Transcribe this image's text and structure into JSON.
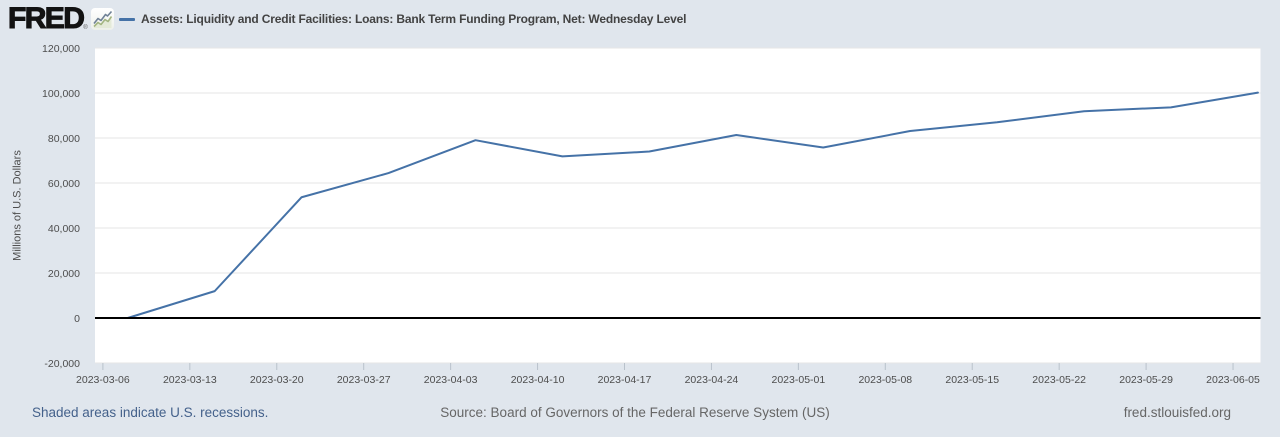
{
  "header": {
    "logo_text": "FRED",
    "logo_registered": "®",
    "logo_icon": "line-chart-icon",
    "series_label": "Assets: Liquidity and Credit Facilities: Loans: Bank Term Funding Program, Net: Wednesday Level"
  },
  "chart_data": {
    "type": "line",
    "title": "Assets: Liquidity and Credit Facilities: Loans: Bank Term Funding Program, Net: Wednesday Level",
    "ylabel": "Millions of U.S. Dollars",
    "xlabel": "",
    "ylim": [
      -20000,
      120000
    ],
    "ytick_step": 20000,
    "ytick_labels": [
      "-20,000",
      "0",
      "20,000",
      "40,000",
      "60,000",
      "80,000",
      "100,000",
      "120,000"
    ],
    "grid": true,
    "zero_line": true,
    "legend_position": "top",
    "line_color": "#4572a7",
    "x": [
      "2023-03-08",
      "2023-03-15",
      "2023-03-22",
      "2023-03-29",
      "2023-04-05",
      "2023-04-12",
      "2023-04-19",
      "2023-04-26",
      "2023-05-03",
      "2023-05-10",
      "2023-05-17",
      "2023-05-24",
      "2023-05-31",
      "2023-06-07"
    ],
    "values": [
      0,
      11943,
      53669,
      64403,
      79021,
      71837,
      73982,
      81327,
      75778,
      83101,
      87006,
      91907,
      93615,
      100161
    ],
    "x_ticks": [
      "2023-03-06",
      "2023-03-13",
      "2023-03-20",
      "2023-03-27",
      "2023-04-03",
      "2023-04-10",
      "2023-04-17",
      "2023-04-24",
      "2023-05-01",
      "2023-05-08",
      "2023-05-15",
      "2023-05-22",
      "2023-05-29",
      "2023-06-05"
    ]
  },
  "footer": {
    "recessions_note": "Shaded areas indicate U.S. recessions.",
    "source": "Source: Board of Governors of the Federal Reserve System (US)",
    "site": "fred.stlouisfed.org"
  },
  "colors": {
    "page_background": "#e0e6ed",
    "plot_background": "#ffffff",
    "series_line": "#4572a7",
    "grid_line": "#e6e6e6",
    "zero_line": "#000000",
    "axis_tick": "#b9c2cb",
    "axis_label": "#4d4d4d",
    "series_title": "#434343",
    "footer_link": "#44618b",
    "footer_text": "#666666",
    "logo": "#121212"
  }
}
